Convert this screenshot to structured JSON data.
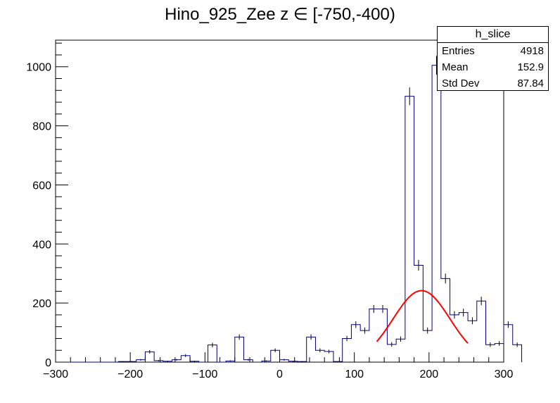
{
  "title": "Hino_925_Zee z  ∈ [-750,-400)",
  "stats": {
    "name": "h_slice",
    "entries_label": "Entries",
    "entries_value": "4918",
    "mean_label": "Mean",
    "mean_value": "152.9",
    "std_label": "Std Dev",
    "std_value": "87.84"
  },
  "colors": {
    "histogram": "#000080",
    "fit": "#ff0000",
    "errors": "#000080"
  },
  "chart_data": {
    "type": "histogram",
    "title": "Hino_925_Zee z  ∈ [-750,-400)",
    "xlabel": "",
    "ylabel": "",
    "xlim": [
      -300,
      300
    ],
    "ylim": [
      0,
      1090
    ],
    "x_ticks": [
      -300,
      -200,
      -100,
      0,
      100,
      200,
      300
    ],
    "y_ticks": [
      0,
      200,
      400,
      600,
      800,
      1000
    ],
    "bin_edges_start": -300,
    "bin_width": 12,
    "bin_contents": [
      0,
      0,
      0,
      0,
      0,
      0,
      0,
      2,
      2,
      8,
      35,
      5,
      3,
      8,
      22,
      3,
      0,
      58,
      0,
      4,
      85,
      8,
      0,
      4,
      40,
      8,
      3,
      2,
      85,
      40,
      36,
      2,
      80,
      127,
      107,
      180,
      180,
      60,
      78,
      900,
      328,
      107,
      1005,
      283,
      160,
      168,
      140,
      207,
      59,
      63,
      127,
      59
    ],
    "fit_curve": {
      "type": "gaus",
      "constant": 242,
      "mean": 190,
      "sigma": 38,
      "range": [
        130,
        252
      ]
    },
    "grid": false
  }
}
